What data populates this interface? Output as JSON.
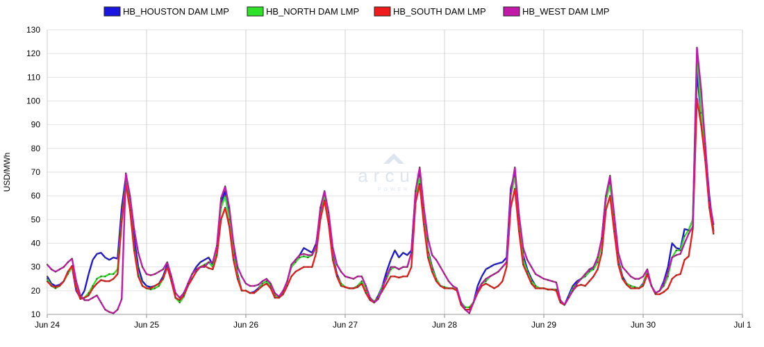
{
  "chart_data": {
    "type": "line",
    "title": "",
    "xlabel": "",
    "ylabel": "USD/MWh",
    "ylim": [
      10,
      130
    ],
    "yticks": [
      10,
      20,
      30,
      40,
      50,
      60,
      70,
      80,
      90,
      100,
      110,
      120,
      130
    ],
    "xlim": [
      0,
      7
    ],
    "xticks": [
      {
        "x": 0,
        "label": "Jun 24"
      },
      {
        "x": 1,
        "label": "Jun 25"
      },
      {
        "x": 2,
        "label": "Jun 26"
      },
      {
        "x": 3,
        "label": "Jun 27"
      },
      {
        "x": 4,
        "label": "Jun 28"
      },
      {
        "x": 5,
        "label": "Jun 29"
      },
      {
        "x": 6,
        "label": "Jun 30"
      },
      {
        "x": 7,
        "label": "Jul 1"
      }
    ],
    "x_unit": "days from Jun 24 00:00, hourly",
    "grid": "vertical lines at each day, horizontal lines at each y tick",
    "legend_position": "top",
    "series": [
      {
        "name": "HB_HOUSTON DAM LMP",
        "color": "#1a16e0",
        "values": [
          26,
          23,
          22,
          22.5,
          24,
          28,
          30,
          20,
          17,
          20,
          27,
          33,
          35.5,
          36,
          34,
          33,
          34,
          33.5,
          55,
          68,
          57,
          42,
          30,
          24,
          22,
          21.5,
          22,
          23,
          26,
          31,
          25,
          17,
          15.5,
          18,
          23,
          27,
          30,
          32,
          33,
          34,
          31,
          38,
          57,
          62,
          52,
          37,
          27,
          20,
          20,
          19,
          19.5,
          21,
          23,
          24,
          22,
          18,
          17,
          19,
          24,
          30,
          33,
          35,
          38,
          37,
          36,
          40,
          53,
          61,
          52,
          35,
          27,
          23,
          21.5,
          21,
          21,
          22,
          24,
          20,
          17,
          15,
          18,
          22,
          28,
          33,
          37,
          34,
          36,
          35,
          37,
          61,
          70,
          52,
          37,
          30,
          25,
          22,
          21.5,
          21,
          21,
          20.5,
          15,
          13,
          13,
          15,
          22,
          26,
          29,
          30,
          31,
          31.5,
          32,
          34,
          63,
          70,
          50,
          35,
          29,
          25,
          22,
          21,
          21,
          20.5,
          20.5,
          20.5,
          15.5,
          14,
          18,
          22,
          24,
          25,
          26,
          28,
          30,
          33,
          42,
          60,
          66,
          50,
          33,
          26,
          23,
          22,
          21.5,
          21,
          23,
          28,
          22,
          19,
          20,
          24,
          30,
          40,
          38,
          37.5,
          46,
          45.5,
          50,
          112,
          94,
          80,
          60,
          45
        ]
      },
      {
        "name": "HB_NORTH DAM LMP",
        "color": "#2ee12a",
        "values": [
          25,
          22,
          21,
          22,
          24,
          27,
          30,
          22,
          17,
          17,
          19,
          22,
          25,
          26,
          26,
          27,
          27,
          29,
          50,
          66,
          55,
          38,
          27,
          22,
          21,
          20.5,
          21,
          22,
          25,
          30,
          24,
          17,
          15,
          17.5,
          22,
          27,
          29,
          30,
          31,
          32,
          30,
          37,
          55,
          60,
          50,
          35,
          26,
          20,
          20,
          19,
          19,
          20.5,
          23,
          24,
          22,
          18,
          17,
          19,
          24,
          30,
          32,
          34,
          34.5,
          34,
          35,
          38,
          50,
          60,
          50,
          34,
          26,
          23,
          21.5,
          21,
          21,
          22,
          24,
          20,
          17,
          15.5,
          17,
          22,
          25,
          29,
          30,
          29,
          30,
          30,
          36,
          60,
          68,
          50,
          36,
          29,
          25,
          22,
          21.5,
          21,
          21,
          20.5,
          15,
          13,
          13,
          15,
          20,
          23,
          24,
          26,
          27,
          28,
          30,
          32,
          60,
          68,
          48,
          33,
          28,
          24,
          22,
          21,
          21,
          20.5,
          20.5,
          20.5,
          15.5,
          14,
          17,
          21,
          23,
          25,
          26,
          28,
          29,
          32,
          40,
          58,
          65,
          48,
          32,
          25,
          23,
          22,
          21.5,
          21,
          22.5,
          28,
          22,
          19,
          20,
          22,
          26,
          34,
          37,
          37,
          43,
          45.5,
          50,
          120,
          95,
          78,
          55,
          44
        ]
      },
      {
        "name": "HB_SOUTH DAM LMP",
        "color": "#ee1c1c",
        "values": [
          24,
          22,
          21.5,
          22,
          24,
          28,
          30.5,
          21,
          16.5,
          17,
          18,
          21,
          23,
          24.5,
          24,
          24,
          25,
          27,
          49,
          65,
          54,
          37,
          26,
          22,
          21,
          21,
          22,
          23,
          25,
          30,
          24,
          17,
          16,
          18,
          22,
          25,
          28,
          30,
          30.5,
          29.5,
          29,
          35,
          50,
          55,
          47,
          33,
          25,
          20,
          20,
          19,
          19,
          20.5,
          22,
          23,
          21,
          17,
          17,
          18.5,
          22,
          26,
          28,
          29,
          30,
          30,
          30,
          36,
          50,
          58,
          48,
          33,
          26,
          22,
          21.5,
          21,
          21,
          21.5,
          23,
          19,
          16,
          15,
          17,
          20,
          23,
          26,
          26,
          25.5,
          26,
          26,
          30,
          57,
          65,
          48,
          34,
          28,
          24,
          22,
          21,
          21,
          21,
          20,
          14,
          12,
          12,
          15,
          19,
          22,
          23,
          22,
          21,
          22,
          24,
          30,
          55,
          63,
          45,
          31,
          27,
          23,
          21,
          21,
          21,
          20.5,
          20.5,
          20,
          15,
          14,
          17,
          20,
          22,
          22.5,
          22,
          24,
          26,
          29,
          36,
          54,
          60,
          45,
          31,
          25,
          22.5,
          21,
          21,
          21,
          22,
          27,
          22,
          18.5,
          18.5,
          19.5,
          21,
          25,
          26.5,
          27,
          33,
          34.5,
          46,
          101,
          90,
          75,
          55,
          44
        ]
      },
      {
        "name": "HB_WEST DAM LMP",
        "color": "#c21aa8",
        "values": [
          31,
          29,
          28,
          29,
          30,
          32,
          33.5,
          24,
          18,
          16,
          16,
          17,
          18,
          15,
          12,
          11,
          10.5,
          12,
          16.5,
          69.5,
          60,
          46,
          36,
          30,
          27,
          26.5,
          27,
          28,
          29,
          32,
          26,
          19,
          17,
          19,
          23,
          27,
          29,
          30,
          30,
          32,
          32,
          39,
          59,
          64,
          55,
          40,
          30,
          26,
          23,
          22,
          22,
          22.5,
          24,
          25,
          23,
          19,
          17.5,
          20,
          24,
          31,
          33,
          35,
          35.5,
          35,
          35,
          39,
          55,
          62,
          53,
          38,
          31,
          28,
          26,
          25.5,
          25,
          26,
          26,
          22,
          17,
          15,
          16.5,
          21,
          26,
          30,
          30,
          29,
          30,
          30,
          36,
          62,
          72,
          55,
          42,
          35,
          33,
          30,
          27,
          24,
          22,
          21,
          15,
          12,
          10.5,
          15,
          20,
          23,
          25,
          26,
          27,
          28,
          30,
          32,
          61,
          72,
          52,
          38,
          33,
          30,
          27,
          26,
          25,
          24.5,
          24,
          23.5,
          16,
          14,
          17,
          20,
          23,
          25,
          27,
          29,
          30,
          34,
          42,
          60,
          68.5,
          52,
          36,
          30,
          28,
          26,
          25,
          25,
          26,
          29,
          22,
          19,
          20,
          23,
          28,
          34,
          35,
          35.5,
          40,
          44,
          47,
          122.5,
          105,
          82,
          58,
          48
        ]
      }
    ]
  },
  "watermark": {
    "brand": "arcus",
    "sub": "POWER"
  }
}
